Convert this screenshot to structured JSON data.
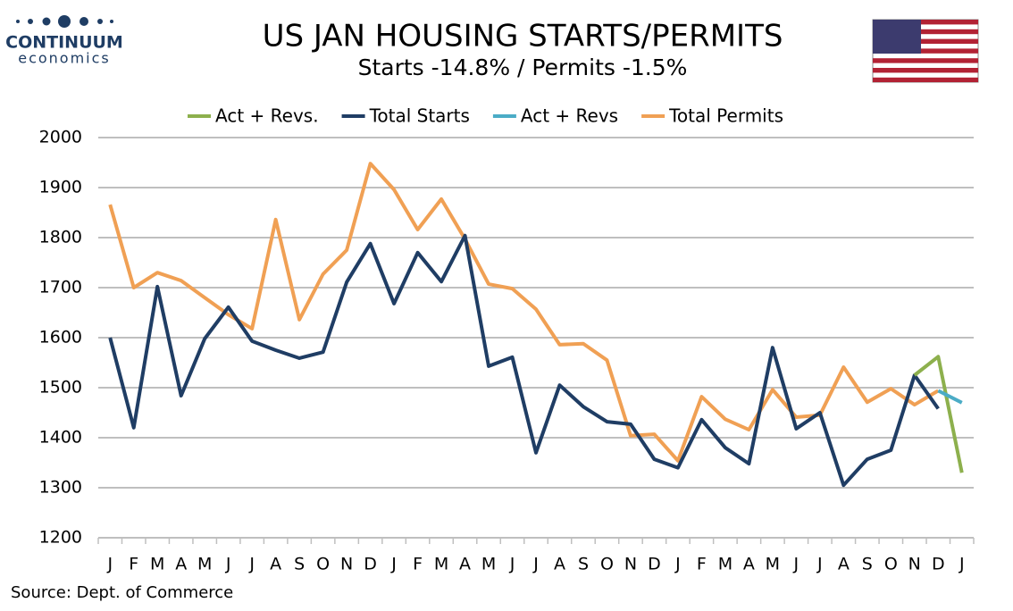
{
  "logo": {
    "name": "CONTINUUM",
    "tagline": "economics"
  },
  "chart_data": {
    "type": "line",
    "title": "US JAN HOUSING STARTS/PERMITS",
    "subtitle": "Starts  -14.8% / Permits -1.5%",
    "source": "Source: Dept. of Commerce",
    "categories": [
      "J",
      "F",
      "M",
      "A",
      "M",
      "J",
      "J",
      "A",
      "S",
      "O",
      "N",
      "D",
      "J",
      "F",
      "M",
      "A",
      "M",
      "J",
      "J",
      "A",
      "S",
      "O",
      "N",
      "D",
      "J",
      "F",
      "M",
      "A",
      "M",
      "J",
      "J",
      "A",
      "S",
      "O",
      "N",
      "D",
      "J"
    ],
    "series": [
      {
        "name": "Act + Revs.",
        "color": "#8db04d",
        "values": [
          null,
          null,
          null,
          null,
          null,
          null,
          null,
          null,
          null,
          null,
          null,
          null,
          null,
          null,
          null,
          null,
          null,
          null,
          null,
          null,
          null,
          null,
          null,
          null,
          null,
          null,
          null,
          null,
          null,
          null,
          null,
          null,
          null,
          null,
          1525,
          1562,
          1330
        ]
      },
      {
        "name": "Total Starts",
        "color": "#1f3d64",
        "values": [
          1600,
          1420,
          1702,
          1484,
          1598,
          1661,
          1593,
          1575,
          1559,
          1571,
          1711,
          1788,
          1668,
          1770,
          1712,
          1804,
          1543,
          1561,
          1370,
          1505,
          1462,
          1432,
          1427,
          1357,
          1340,
          1436,
          1380,
          1348,
          1580,
          1418,
          1450,
          1305,
          1357,
          1375,
          1525,
          1458,
          null
        ]
      },
      {
        "name": "Act + Revs",
        "color": "#4bacc6",
        "values": [
          null,
          null,
          null,
          null,
          null,
          null,
          null,
          null,
          null,
          null,
          null,
          null,
          null,
          null,
          null,
          null,
          null,
          null,
          null,
          null,
          null,
          null,
          null,
          null,
          null,
          null,
          null,
          null,
          null,
          null,
          null,
          null,
          null,
          null,
          null,
          1494,
          1470
        ]
      },
      {
        "name": "Total Permits",
        "color": "#f0a054",
        "values": [
          1866,
          1700,
          1730,
          1714,
          1680,
          1646,
          1618,
          1836,
          1636,
          1727,
          1775,
          1948,
          1896,
          1816,
          1877,
          1797,
          1707,
          1698,
          1657,
          1586,
          1588,
          1555,
          1404,
          1407,
          1354,
          1482,
          1437,
          1416,
          1496,
          1441,
          1445,
          1541,
          1471,
          1498,
          1466,
          1494,
          null
        ]
      }
    ],
    "ylim": [
      1200,
      2000
    ],
    "yticks": [
      1200,
      1300,
      1400,
      1500,
      1600,
      1700,
      1800,
      1900,
      2000
    ],
    "grid": true,
    "legend": "top"
  }
}
